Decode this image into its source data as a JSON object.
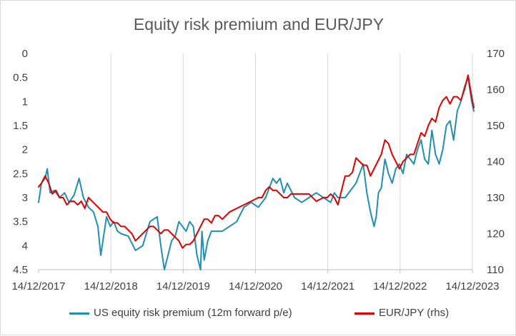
{
  "chart_data": {
    "type": "line",
    "title": "Equity risk premium and EUR/JPY",
    "xlabel": "",
    "x_ticks": [
      "14/12/2017",
      "14/12/2018",
      "14/12/2019",
      "14/12/2020",
      "14/12/2021",
      "14/12/2022",
      "14/12/2023"
    ],
    "y_left": {
      "ticks": [
        "0",
        "0.5",
        "1",
        "1.5",
        "2",
        "2.5",
        "3",
        "3.5",
        "4",
        "4.5"
      ],
      "ylim": [
        4.5,
        0
      ],
      "reversed": true
    },
    "y_right": {
      "ticks": [
        "110",
        "120",
        "130",
        "140",
        "150",
        "160",
        "170"
      ],
      "ylim": [
        110,
        170
      ]
    },
    "grid": "vertical",
    "legend_position": "bottom",
    "series": [
      {
        "name": "US equity risk premium (12m forward p/e)",
        "axis": "left",
        "color": "#1f8fb4",
        "x": [
          2017.96,
          2018.0,
          2018.05,
          2018.08,
          2018.12,
          2018.18,
          2018.25,
          2018.32,
          2018.38,
          2018.45,
          2018.52,
          2018.58,
          2018.65,
          2018.72,
          2018.78,
          2018.82,
          2018.86,
          2018.9,
          2018.95,
          2019.0,
          2019.05,
          2019.1,
          2019.2,
          2019.3,
          2019.4,
          2019.5,
          2019.6,
          2019.65,
          2019.7,
          2019.75,
          2019.8,
          2019.85,
          2019.9,
          2019.95,
          2020.0,
          2020.05,
          2020.1,
          2020.15,
          2020.2,
          2020.22,
          2020.25,
          2020.3,
          2020.35,
          2020.4,
          2020.5,
          2020.6,
          2020.7,
          2020.8,
          2020.9,
          2021.0,
          2021.1,
          2021.2,
          2021.25,
          2021.3,
          2021.35,
          2021.4,
          2021.5,
          2021.6,
          2021.7,
          2021.8,
          2021.9,
          2022.0,
          2022.05,
          2022.1,
          2022.2,
          2022.3,
          2022.35,
          2022.4,
          2022.45,
          2022.5,
          2022.55,
          2022.6,
          2022.63,
          2022.66,
          2022.7,
          2022.75,
          2022.8,
          2022.85,
          2022.9,
          2022.95,
          2023.0,
          2023.05,
          2023.1,
          2023.15,
          2023.2,
          2023.25,
          2023.3,
          2023.35,
          2023.4,
          2023.45,
          2023.5,
          2023.55,
          2023.6,
          2023.65,
          2023.7,
          2023.75,
          2023.8,
          2023.85,
          2023.9,
          2023.95,
          2023.98
        ],
        "values": [
          3.1,
          2.7,
          2.6,
          2.4,
          2.9,
          2.85,
          3.0,
          2.9,
          3.1,
          2.95,
          2.6,
          3.0,
          3.2,
          3.3,
          3.6,
          4.2,
          3.8,
          3.4,
          3.6,
          3.5,
          3.7,
          3.75,
          3.8,
          4.1,
          4.0,
          3.5,
          3.4,
          4.0,
          4.5,
          4.2,
          3.9,
          3.8,
          3.5,
          3.6,
          3.7,
          3.5,
          3.6,
          4.2,
          4.5,
          3.7,
          4.3,
          3.9,
          3.7,
          3.7,
          3.7,
          3.6,
          3.5,
          3.2,
          3.1,
          3.2,
          3.0,
          2.6,
          2.7,
          2.6,
          2.9,
          2.7,
          3.0,
          3.1,
          3.0,
          2.9,
          3.0,
          3.1,
          2.9,
          3.0,
          3.0,
          2.8,
          2.7,
          2.5,
          2.3,
          2.9,
          3.3,
          3.6,
          3.4,
          2.9,
          2.8,
          2.2,
          2.5,
          2.7,
          2.4,
          2.3,
          2.5,
          2.1,
          2.2,
          2.3,
          2.0,
          1.8,
          2.2,
          2.3,
          1.6,
          2.1,
          2.3,
          2.0,
          1.5,
          1.4,
          1.8,
          1.2,
          1.0,
          0.7,
          0.5,
          1.0,
          1.2
        ]
      },
      {
        "name": "EUR/JPY (rhs)",
        "axis": "right",
        "color": "#e00000",
        "x": [
          2017.96,
          2018.0,
          2018.05,
          2018.1,
          2018.15,
          2018.2,
          2018.25,
          2018.3,
          2018.35,
          2018.4,
          2018.45,
          2018.5,
          2018.55,
          2018.6,
          2018.65,
          2018.7,
          2018.75,
          2018.8,
          2018.85,
          2018.9,
          2018.95,
          2019.0,
          2019.05,
          2019.1,
          2019.15,
          2019.2,
          2019.25,
          2019.3,
          2019.35,
          2019.4,
          2019.45,
          2019.5,
          2019.55,
          2019.6,
          2019.65,
          2019.7,
          2019.75,
          2019.8,
          2019.85,
          2019.9,
          2019.95,
          2020.0,
          2020.05,
          2020.1,
          2020.15,
          2020.2,
          2020.25,
          2020.3,
          2020.35,
          2020.4,
          2020.45,
          2020.5,
          2020.6,
          2020.7,
          2020.8,
          2020.9,
          2021.0,
          2021.05,
          2021.1,
          2021.15,
          2021.2,
          2021.25,
          2021.3,
          2021.35,
          2021.4,
          2021.45,
          2021.5,
          2021.6,
          2021.7,
          2021.8,
          2021.9,
          2021.95,
          2022.0,
          2022.05,
          2022.1,
          2022.15,
          2022.2,
          2022.25,
          2022.3,
          2022.35,
          2022.4,
          2022.45,
          2022.5,
          2022.55,
          2022.6,
          2022.65,
          2022.7,
          2022.75,
          2022.8,
          2022.85,
          2022.9,
          2022.95,
          2023.0,
          2023.05,
          2023.1,
          2023.15,
          2023.2,
          2023.25,
          2023.3,
          2023.35,
          2023.4,
          2023.45,
          2023.5,
          2023.55,
          2023.6,
          2023.65,
          2023.7,
          2023.75,
          2023.8,
          2023.85,
          2023.9,
          2023.95,
          2023.98
        ],
        "values": [
          133,
          134,
          136,
          134,
          131,
          132,
          130,
          130,
          128,
          129,
          129,
          128,
          129,
          127,
          130,
          129,
          128,
          127,
          126,
          126,
          124,
          123,
          123,
          122,
          122,
          121,
          120,
          118,
          119,
          120,
          121,
          122,
          122,
          121,
          120,
          121,
          121,
          120,
          119,
          118,
          116,
          117,
          117,
          118,
          120,
          122,
          124,
          124,
          123,
          125,
          125,
          124,
          126,
          127,
          128,
          129,
          130,
          130,
          132,
          133,
          132,
          132,
          131,
          130,
          130,
          131,
          131,
          131,
          131,
          129,
          130,
          130,
          131,
          130,
          128,
          132,
          136,
          136,
          137,
          141,
          140,
          139,
          139,
          136,
          138,
          140,
          142,
          146,
          145,
          142,
          140,
          138,
          140,
          141,
          142,
          142,
          145,
          148,
          147,
          150,
          152,
          151,
          155,
          157,
          158,
          156,
          158,
          158,
          157,
          160,
          164,
          158,
          155
        ]
      }
    ]
  }
}
